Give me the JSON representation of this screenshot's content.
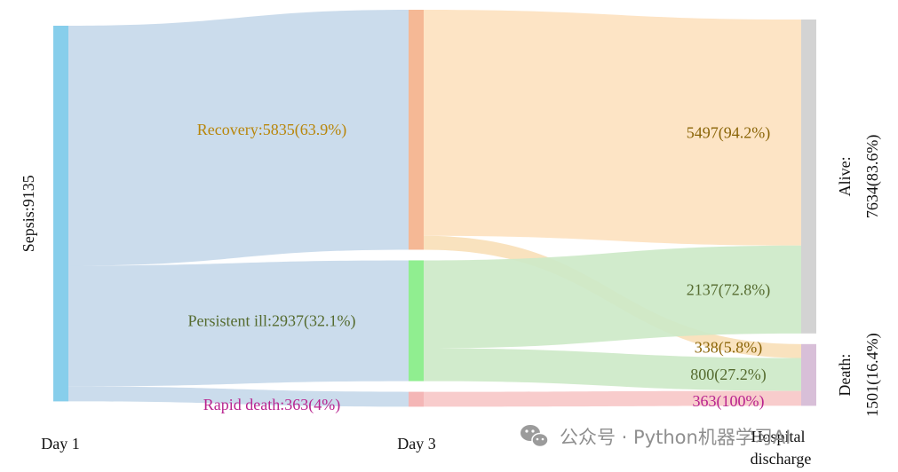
{
  "chart_data": {
    "type": "sankey",
    "title": "",
    "stages": [
      "Day 1",
      "Day 3",
      "Hospital discharge"
    ],
    "nodes": [
      {
        "id": "sepsis",
        "stage": 0,
        "label": "Sepsis:9135",
        "value": 9135,
        "color": "#87ceeb"
      },
      {
        "id": "recovery",
        "stage": 1,
        "label": "Recovery:5835(63.9%)",
        "value": 5835,
        "color": "#f5b895",
        "label_color": "#b8860b"
      },
      {
        "id": "persistent",
        "stage": 1,
        "label": "Persistent ill:2937(32.1%)",
        "value": 2937,
        "color": "#90ee90",
        "label_color": "#556b2f"
      },
      {
        "id": "rapid_death",
        "stage": 1,
        "label": "Rapid death:363(4%)",
        "value": 363,
        "color": "#f4b6b6",
        "label_color": "#b8238f"
      },
      {
        "id": "alive",
        "stage": 2,
        "label_line1": "Alive:",
        "label_line2": "7634(83.6%)",
        "value": 7634,
        "color": "#d3d3d3"
      },
      {
        "id": "death",
        "stage": 2,
        "label_line1": "Death:",
        "label_line2": "1501(16.4%)",
        "value": 1501,
        "color": "#d8bfd8"
      }
    ],
    "links": [
      {
        "source": "sepsis",
        "target": "recovery",
        "value": 5835,
        "color": "#c7d9ea",
        "label": ""
      },
      {
        "source": "sepsis",
        "target": "persistent",
        "value": 2937,
        "color": "#c7d9ea",
        "label": ""
      },
      {
        "source": "sepsis",
        "target": "rapid_death",
        "value": 363,
        "color": "#c7d9ea",
        "label": ""
      },
      {
        "source": "recovery",
        "target": "alive",
        "value": 5497,
        "color": "#fde2c0",
        "label": "5497(94.2%)",
        "label_color": "#8b6508"
      },
      {
        "source": "recovery",
        "target": "death",
        "value": 338,
        "color": "#f8dfb8",
        "label": "338(5.8%)",
        "label_color": "#8b6508"
      },
      {
        "source": "persistent",
        "target": "alive",
        "value": 2137,
        "color": "#cde9c8",
        "label": "2137(72.8%)",
        "label_color": "#556b2f"
      },
      {
        "source": "persistent",
        "target": "death",
        "value": 800,
        "color": "#cde9c8",
        "label": "800(27.2%)",
        "label_color": "#556b2f"
      },
      {
        "source": "rapid_death",
        "target": "death",
        "value": 363,
        "color": "#f7c8c8",
        "label": "363(100%)",
        "label_color": "#b8238f"
      }
    ]
  },
  "labels": {
    "stage_0": "Day 1",
    "stage_1": "Day 3",
    "stage_2_line1": "Hospital",
    "stage_2_line2": "discharge"
  },
  "watermark": {
    "icon": "wechat-icon",
    "text": "公众号 · Python机器学习AI"
  }
}
